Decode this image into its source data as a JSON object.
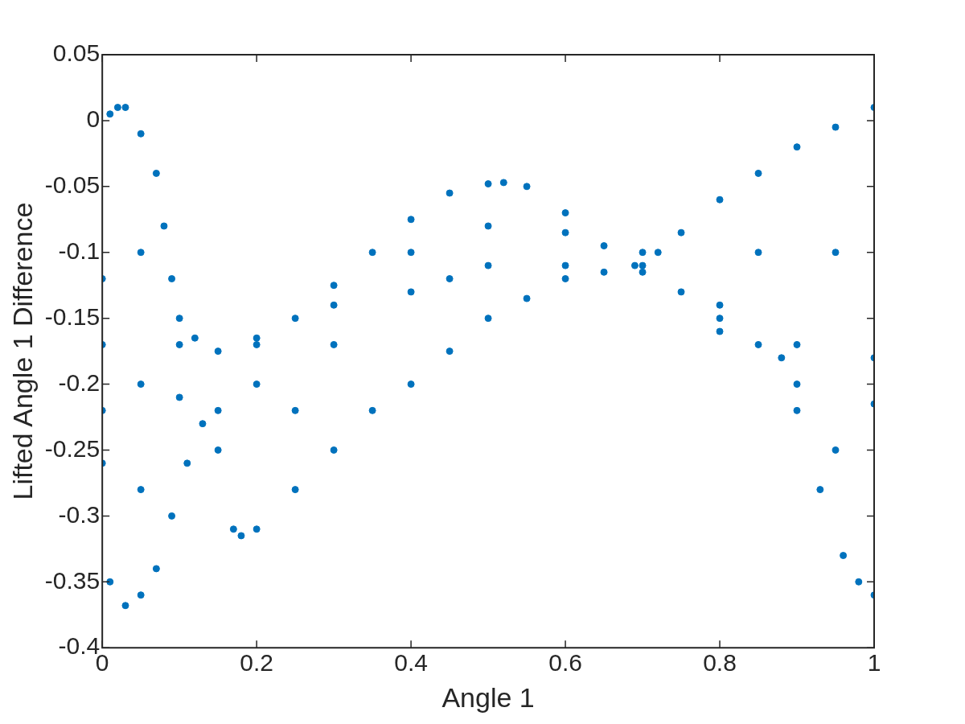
{
  "chart_data": {
    "type": "scatter",
    "xlabel": "Angle 1",
    "ylabel": "Lifted Angle 1 Difference",
    "xlim": [
      0,
      1
    ],
    "xticks": [
      0,
      0.2,
      0.4,
      0.6,
      0.8,
      1
    ],
    "ylim": [
      -0.4,
      0.05
    ],
    "yticks": [
      -0.4,
      -0.35,
      -0.3,
      -0.25,
      -0.2,
      -0.15,
      -0.1,
      -0.05,
      0,
      0.05
    ],
    "grid": false,
    "legend": false,
    "marker": "circle",
    "series": [
      {
        "color": "#0072bd",
        "x": [
          0,
          0.01,
          0.02,
          0.03,
          0.05,
          0.07,
          0.08,
          0.09,
          0.1,
          0.12,
          0.15,
          0.2,
          0.25,
          0.3,
          0.35,
          0.4,
          0.45,
          0.5,
          0.52,
          0.55,
          0.6,
          0.65,
          0.69,
          0.72,
          0.75,
          0.8,
          0.85,
          0.9,
          0.95,
          1,
          0,
          0.01,
          0.03,
          0.05,
          0.07,
          0.09,
          0.11,
          0.13,
          0.15,
          0.17,
          0.18,
          0.2,
          0.25,
          0.3,
          0.35,
          0.4,
          0.45,
          0.5,
          0.55,
          0.6,
          0.65,
          0.7,
          0.75,
          0.8,
          0.85,
          0.88,
          0.9,
          0.93,
          0.96,
          0.98,
          1,
          0,
          0.1,
          0.2,
          0.3,
          0.4,
          0.5,
          0.6,
          0.7,
          0.8,
          0.9,
          1,
          0,
          0.1,
          0.2,
          0.3,
          0.4,
          0.5,
          0.6,
          0.7,
          0.8,
          0.9,
          1,
          0.05,
          0.05,
          0.15,
          0.25,
          0.45,
          0.85,
          0.95,
          0.95,
          0.05
        ],
        "values": [
          -0.12,
          0.005,
          0.01,
          0.01,
          -0.01,
          -0.04,
          -0.08,
          -0.12,
          -0.15,
          -0.165,
          -0.175,
          -0.165,
          -0.15,
          -0.125,
          -0.1,
          -0.075,
          -0.055,
          -0.048,
          -0.047,
          -0.05,
          -0.07,
          -0.095,
          -0.11,
          -0.1,
          -0.085,
          -0.06,
          -0.04,
          -0.02,
          -0.005,
          0.01,
          -0.26,
          -0.35,
          -0.368,
          -0.36,
          -0.34,
          -0.3,
          -0.26,
          -0.23,
          -0.22,
          -0.31,
          -0.315,
          -0.31,
          -0.28,
          -0.25,
          -0.22,
          -0.2,
          -0.175,
          -0.15,
          -0.135,
          -0.12,
          -0.115,
          -0.115,
          -0.13,
          -0.15,
          -0.17,
          -0.18,
          -0.22,
          -0.28,
          -0.33,
          -0.35,
          -0.36,
          -0.17,
          -0.17,
          -0.17,
          -0.14,
          -0.1,
          -0.08,
          -0.085,
          -0.1,
          -0.14,
          -0.17,
          -0.18,
          -0.22,
          -0.21,
          -0.2,
          -0.17,
          -0.13,
          -0.11,
          -0.11,
          -0.11,
          -0.16,
          -0.2,
          -0.215,
          -0.2,
          -0.1,
          -0.25,
          -0.22,
          -0.12,
          -0.1,
          -0.1,
          -0.25,
          -0.28
        ]
      }
    ]
  }
}
